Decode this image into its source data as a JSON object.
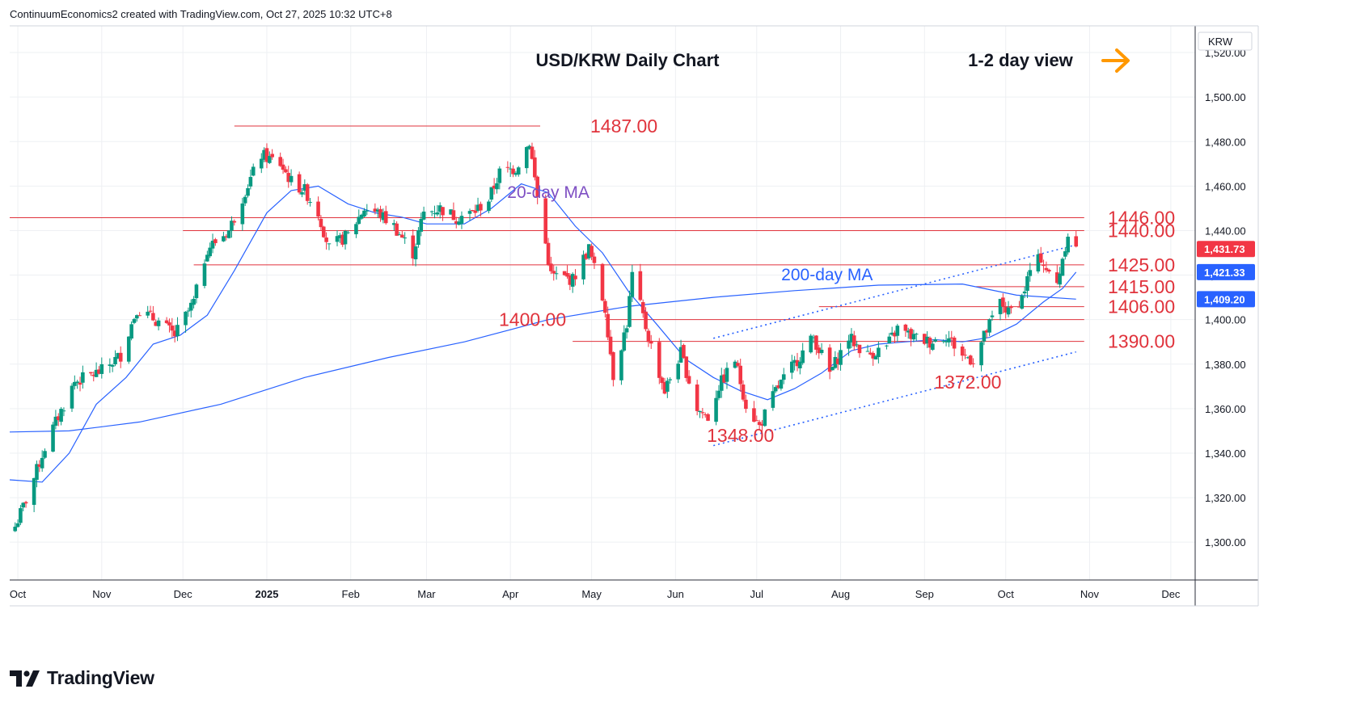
{
  "header": {
    "attribution": "ContinuumEconomics2 created with TradingView.com, Oct 27, 2025 10:32 UTC+8"
  },
  "branding": {
    "logo_text": "TradingView",
    "logo_icon": "tradingview-logo-icon"
  },
  "colors": {
    "up": "#089981",
    "down": "#f23645",
    "ma20": "#2962ff",
    "ma200": "#2962ff",
    "level_line": "#e0333c",
    "level_text": "#e0333c",
    "trendline": "#2962ff",
    "annotation_purple": "#7e4fc3",
    "annotation_blue": "#2962ff",
    "arrow": "#ff9800",
    "grid": "#eef0f3",
    "axis_text": "#131722"
  },
  "chart_data": {
    "type": "candlestick",
    "title": "USD/KRW Daily Chart",
    "view_label": "1-2 day view",
    "view_arrow_icon": "right-arrow-icon",
    "currency_label": "KRW",
    "ylim": [
      1283,
      1532
    ],
    "y_ticks": [
      "1,300.00",
      "1,320.00",
      "1,340.00",
      "1,360.00",
      "1,380.00",
      "1,400.00",
      "1,420.00",
      "1,440.00",
      "1,460.00",
      "1,480.00",
      "1,500.00",
      "1,520.00"
    ],
    "x_ticks": [
      {
        "label": "Oct",
        "date": "2024-10-01",
        "bold": false
      },
      {
        "label": "Nov",
        "date": "2024-11-01",
        "bold": false
      },
      {
        "label": "Dec",
        "date": "2024-12-01",
        "bold": false
      },
      {
        "label": "2025",
        "date": "2025-01-01",
        "bold": true
      },
      {
        "label": "Feb",
        "date": "2025-02-01",
        "bold": false
      },
      {
        "label": "Mar",
        "date": "2025-03-01",
        "bold": false
      },
      {
        "label": "Apr",
        "date": "2025-04-01",
        "bold": false
      },
      {
        "label": "May",
        "date": "2025-05-01",
        "bold": false
      },
      {
        "label": "Jun",
        "date": "2025-06-01",
        "bold": false
      },
      {
        "label": "Jul",
        "date": "2025-07-01",
        "bold": false
      },
      {
        "label": "Aug",
        "date": "2025-08-01",
        "bold": false
      },
      {
        "label": "Sep",
        "date": "2025-09-01",
        "bold": false
      },
      {
        "label": "Oct",
        "date": "2025-10-01",
        "bold": false
      },
      {
        "label": "Nov",
        "date": "2025-11-01",
        "bold": false
      },
      {
        "label": "Dec",
        "date": "2025-12-01",
        "bold": false
      }
    ],
    "x_range": [
      "2024-09-28",
      "2025-12-10"
    ],
    "price_anchors": [
      [
        "2024-09-30",
        1307
      ],
      [
        "2024-10-05",
        1322
      ],
      [
        "2024-10-12",
        1346
      ],
      [
        "2024-10-22",
        1372
      ],
      [
        "2024-11-01",
        1377
      ],
      [
        "2024-11-08",
        1384
      ],
      [
        "2024-11-14",
        1405
      ],
      [
        "2024-11-22",
        1399
      ],
      [
        "2024-11-28",
        1393
      ],
      [
        "2024-12-05",
        1408
      ],
      [
        "2024-12-10",
        1432
      ],
      [
        "2024-12-18",
        1440
      ],
      [
        "2024-12-24",
        1458
      ],
      [
        "2024-12-30",
        1474
      ],
      [
        "2025-01-06",
        1470
      ],
      [
        "2025-01-10",
        1462
      ],
      [
        "2025-01-15",
        1458
      ],
      [
        "2025-01-20",
        1448
      ],
      [
        "2025-01-24",
        1432
      ],
      [
        "2025-01-31",
        1438
      ],
      [
        "2025-02-06",
        1450
      ],
      [
        "2025-02-11",
        1448
      ],
      [
        "2025-02-17",
        1442
      ],
      [
        "2025-02-24",
        1430
      ],
      [
        "2025-02-28",
        1448
      ],
      [
        "2025-03-06",
        1450
      ],
      [
        "2025-03-12",
        1446
      ],
      [
        "2025-03-18",
        1448
      ],
      [
        "2025-03-24",
        1454
      ],
      [
        "2025-03-28",
        1466
      ],
      [
        "2025-04-03",
        1468
      ],
      [
        "2025-04-08",
        1480
      ],
      [
        "2025-04-11",
        1455
      ],
      [
        "2025-04-16",
        1420
      ],
      [
        "2025-04-24",
        1418
      ],
      [
        "2025-04-30",
        1432
      ],
      [
        "2025-05-06",
        1405
      ],
      [
        "2025-05-09",
        1375
      ],
      [
        "2025-05-14",
        1398
      ],
      [
        "2025-05-16",
        1420
      ],
      [
        "2025-05-22",
        1392
      ],
      [
        "2025-05-28",
        1368
      ],
      [
        "2025-06-03",
        1385
      ],
      [
        "2025-06-09",
        1360
      ],
      [
        "2025-06-13",
        1356
      ],
      [
        "2025-06-17",
        1370
      ],
      [
        "2025-06-23",
        1382
      ],
      [
        "2025-06-27",
        1362
      ],
      [
        "2025-07-02",
        1352
      ],
      [
        "2025-07-08",
        1368
      ],
      [
        "2025-07-16",
        1382
      ],
      [
        "2025-07-22",
        1392
      ],
      [
        "2025-07-28",
        1376
      ],
      [
        "2025-08-04",
        1392
      ],
      [
        "2025-08-11",
        1384
      ],
      [
        "2025-08-18",
        1388
      ],
      [
        "2025-08-22",
        1396
      ],
      [
        "2025-08-28",
        1392
      ],
      [
        "2025-09-03",
        1390
      ],
      [
        "2025-09-09",
        1393
      ],
      [
        "2025-09-15",
        1384
      ],
      [
        "2025-09-19",
        1382
      ],
      [
        "2025-09-24",
        1395
      ],
      [
        "2025-09-29",
        1408
      ],
      [
        "2025-10-02",
        1403
      ],
      [
        "2025-10-07",
        1410
      ],
      [
        "2025-10-10",
        1422
      ],
      [
        "2025-10-14",
        1428
      ],
      [
        "2025-10-17",
        1420
      ],
      [
        "2025-10-20",
        1416
      ],
      [
        "2025-10-22",
        1428
      ],
      [
        "2025-10-24",
        1439
      ],
      [
        "2025-10-27",
        1432
      ]
    ],
    "ma20": [
      [
        "2024-09-28",
        1328
      ],
      [
        "2024-10-10",
        1327
      ],
      [
        "2024-10-20",
        1340
      ],
      [
        "2024-10-30",
        1362
      ],
      [
        "2024-11-10",
        1374
      ],
      [
        "2024-11-20",
        1389
      ],
      [
        "2024-11-30",
        1393
      ],
      [
        "2024-12-10",
        1402
      ],
      [
        "2024-12-20",
        1422
      ],
      [
        "2025-01-01",
        1448
      ],
      [
        "2025-01-10",
        1458
      ],
      [
        "2025-01-20",
        1460
      ],
      [
        "2025-01-31",
        1452
      ],
      [
        "2025-02-10",
        1448
      ],
      [
        "2025-02-20",
        1446
      ],
      [
        "2025-03-01",
        1443
      ],
      [
        "2025-03-15",
        1443
      ],
      [
        "2025-03-25",
        1450
      ],
      [
        "2025-04-05",
        1461
      ],
      [
        "2025-04-15",
        1457
      ],
      [
        "2025-04-25",
        1442
      ],
      [
        "2025-05-05",
        1430
      ],
      [
        "2025-05-15",
        1412
      ],
      [
        "2025-05-25",
        1398
      ],
      [
        "2025-06-05",
        1382
      ],
      [
        "2025-06-15",
        1374
      ],
      [
        "2025-06-25",
        1368
      ],
      [
        "2025-07-05",
        1364
      ],
      [
        "2025-07-15",
        1369
      ],
      [
        "2025-07-25",
        1376
      ],
      [
        "2025-08-05",
        1386
      ],
      [
        "2025-08-15",
        1389
      ],
      [
        "2025-08-25",
        1390
      ],
      [
        "2025-09-05",
        1391
      ],
      [
        "2025-09-15",
        1390
      ],
      [
        "2025-09-25",
        1392
      ],
      [
        "2025-10-05",
        1398
      ],
      [
        "2025-10-15",
        1408
      ],
      [
        "2025-10-22",
        1414
      ],
      [
        "2025-10-27",
        1421.33
      ]
    ],
    "ma200": [
      [
        "2024-09-28",
        1349.5
      ],
      [
        "2024-10-20",
        1350
      ],
      [
        "2024-11-15",
        1354
      ],
      [
        "2024-12-15",
        1362
      ],
      [
        "2025-01-15",
        1374
      ],
      [
        "2025-02-15",
        1383
      ],
      [
        "2025-03-15",
        1390
      ],
      [
        "2025-04-15",
        1400
      ],
      [
        "2025-05-15",
        1406
      ],
      [
        "2025-06-15",
        1410
      ],
      [
        "2025-07-15",
        1413
      ],
      [
        "2025-08-15",
        1415.5
      ],
      [
        "2025-09-15",
        1416
      ],
      [
        "2025-10-05",
        1411
      ],
      [
        "2025-10-27",
        1409.2
      ]
    ],
    "levels": [
      {
        "label": "1487.00",
        "value": 1487,
        "from": "2024-12-20",
        "to": "2025-04-12"
      },
      {
        "label": "1446.00",
        "value": 1445.8,
        "from": "2024-09-28",
        "to": "2025-10-30"
      },
      {
        "label": "1440.00",
        "value": 1440,
        "from": "2024-12-01",
        "to": "2025-10-30"
      },
      {
        "label": "1425.00",
        "value": 1424.6,
        "from": "2024-12-05",
        "to": "2025-10-30"
      },
      {
        "label": "1415.00",
        "value": 1414.8,
        "from": "2025-09-20",
        "to": "2025-10-30"
      },
      {
        "label": "1406.00",
        "value": 1405.8,
        "from": "2025-07-24",
        "to": "2025-10-30"
      },
      {
        "label": "1400.00",
        "value": 1400,
        "from": "2025-05-06",
        "to": "2025-10-30"
      },
      {
        "label": "1390.00",
        "value": 1390.2,
        "from": "2025-04-24",
        "to": "2025-10-30"
      }
    ],
    "annotations": [
      {
        "text": "1372.00",
        "value": 1372,
        "date": "2025-09-17"
      },
      {
        "text": "1348.00",
        "value": 1348,
        "date": "2025-06-25"
      },
      {
        "text": "20-day MA",
        "value": 1457.5,
        "date": "2025-04-15"
      },
      {
        "text": "200-day MA",
        "value": 1420.6,
        "date": "2025-07-27"
      }
    ],
    "trendlines": [
      {
        "from": [
          "2025-06-15",
          1391.6
        ],
        "to": [
          "2025-10-27",
          1433.6
        ]
      },
      {
        "from": [
          "2025-06-15",
          1343.4
        ],
        "to": [
          "2025-10-27",
          1385.5
        ]
      }
    ],
    "price_labels": [
      {
        "text": "1,431.73",
        "value": 1431.73,
        "color": "#f23645"
      },
      {
        "text": "1,421.33",
        "value": 1421.33,
        "color": "#2962ff"
      },
      {
        "text": "1,409.20",
        "value": 1409.2,
        "color": "#2962ff"
      }
    ]
  }
}
